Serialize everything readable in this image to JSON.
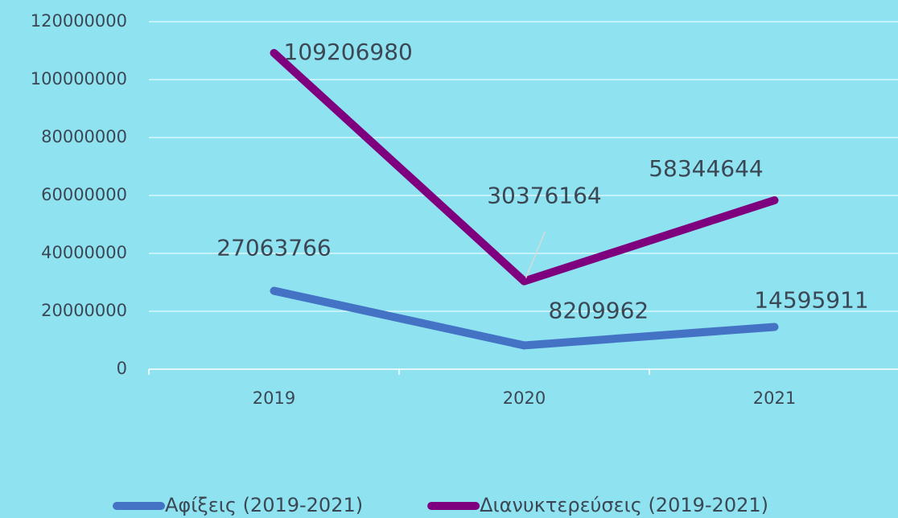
{
  "chart_data": {
    "type": "line",
    "categories": [
      "2019",
      "2020",
      "2021"
    ],
    "series": [
      {
        "name": "Αφίξεις (2019-2021)",
        "color": "#4472c4",
        "values": [
          27063766,
          8209962,
          14595911
        ]
      },
      {
        "name": "Διανυκτερεύσεις (2019-2021)",
        "color": "#7f007f",
        "values": [
          109206980,
          30376164,
          58344644
        ]
      }
    ],
    "ylim": [
      0,
      120000000
    ],
    "yticks": [
      0,
      20000000,
      40000000,
      60000000,
      80000000,
      100000000,
      120000000
    ],
    "grid": true,
    "legend": "bottom"
  }
}
